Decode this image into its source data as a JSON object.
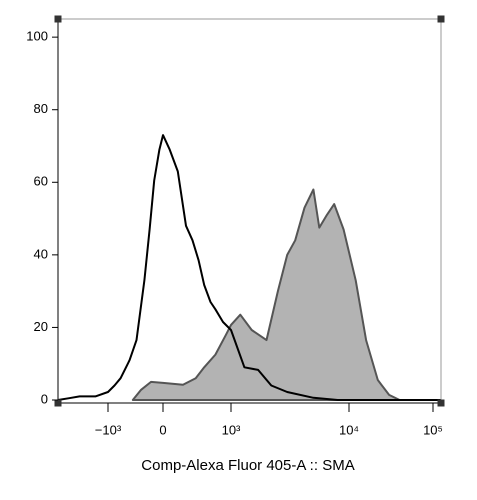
{
  "chart_data": {
    "type": "histogram-overlay",
    "x_label": "Comp-Alexa Fluor 405-A :: SMA",
    "xlim": [
      -5000,
      130000
    ],
    "xticks": [
      {
        "value": -1000,
        "label": "−10³"
      },
      0,
      {
        "value": 1000,
        "label": "10³"
      },
      {
        "value": 10000,
        "label": "10⁴"
      },
      {
        "value": 100000,
        "label": "10⁵"
      }
    ],
    "ylim": [
      0,
      105
    ],
    "yticks": [
      0,
      20,
      40,
      60,
      80,
      100
    ],
    "series": [
      {
        "color": "#b3b3b3",
        "filled": true,
        "x": [
          -250,
          -150,
          -70,
          0,
          100,
          200,
          300,
          500,
          800,
          1000,
          1200,
          1500,
          2000,
          2500,
          3000,
          3500,
          4200,
          5000,
          5600,
          6500,
          7500,
          9000,
          12000,
          16000,
          22000,
          30000,
          40000
        ],
        "values": [
          0,
          2.8,
          5,
          4.7,
          4.2,
          6,
          9,
          12.5,
          18,
          20.7,
          23.5,
          19.3,
          16.5,
          30,
          40,
          44,
          53,
          58,
          47.5,
          51,
          54,
          47,
          33,
          16.5,
          5.5,
          1.4,
          0
        ]
      },
      {
        "color": "#000000",
        "filled": false,
        "x": [
          -5000,
          -3500,
          -2500,
          -1500,
          -1000,
          -700,
          -500,
          -300,
          -200,
          -120,
          -80,
          -50,
          -20,
          0,
          30,
          70,
          120,
          170,
          230,
          300,
          400,
          500,
          700,
          1000,
          1300,
          1700,
          2200,
          3000,
          5000,
          8000,
          130000
        ],
        "values": [
          0,
          0.5,
          1,
          1,
          2.2,
          4,
          6,
          11,
          16.5,
          33,
          47,
          60.5,
          69,
          73,
          69,
          63,
          48,
          44,
          38.5,
          31.7,
          27,
          25,
          21.5,
          19.3,
          9,
          8.3,
          4,
          2.2,
          0.6,
          0,
          0
        ]
      }
    ]
  }
}
